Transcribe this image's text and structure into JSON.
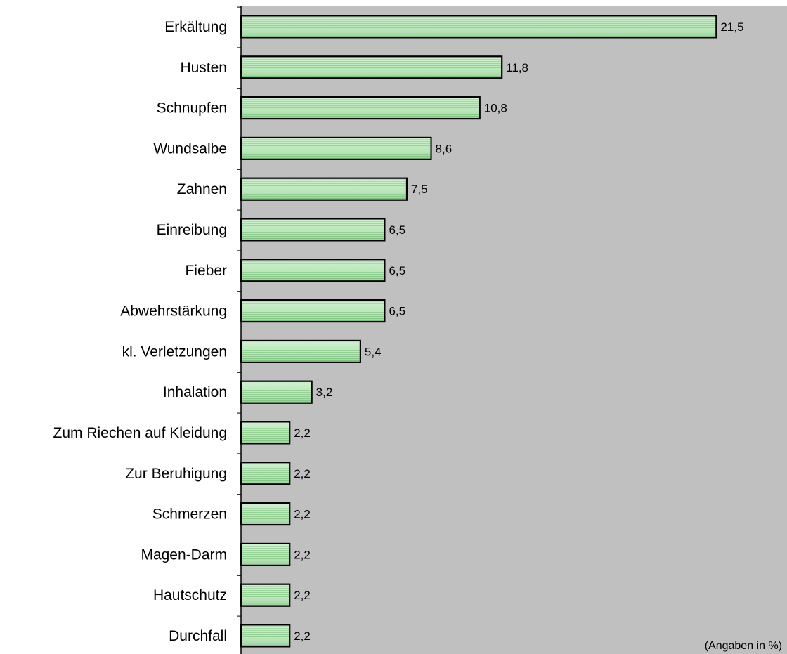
{
  "chart_data": {
    "type": "bar",
    "orientation": "horizontal",
    "categories": [
      "Erkältung",
      "Husten",
      "Schnupfen",
      "Wundsalbe",
      "Zahnen",
      "Einreibung",
      "Fieber",
      "Abwehrstärkung",
      "kl. Verletzungen",
      "Inhalation",
      "Zum Riechen auf Kleidung",
      "Zur Beruhigung",
      "Schmerzen",
      "Magen-Darm",
      "Hautschutz",
      "Durchfall"
    ],
    "values": [
      21.5,
      11.8,
      10.8,
      8.6,
      7.5,
      6.5,
      6.5,
      6.5,
      5.4,
      3.2,
      2.2,
      2.2,
      2.2,
      2.2,
      2.2,
      2.2
    ],
    "value_labels": [
      "21,5",
      "11,8",
      "10,8",
      "8,6",
      "7,5",
      "6,5",
      "6,5",
      "6,5",
      "5,4",
      "3,2",
      "2,2",
      "2,2",
      "2,2",
      "2,2",
      "2,2",
      "2,2"
    ],
    "title": "",
    "xlabel": "",
    "ylabel": "",
    "xlim": [
      0,
      24.7
    ],
    "grid": false,
    "legend": "none",
    "annotation": "(Angaben in %)",
    "colors": {
      "plot_background": "#c0c0c0",
      "bar_fill": "#b6e6b6",
      "bar_stroke": "#000000",
      "axis": "#000000"
    }
  }
}
